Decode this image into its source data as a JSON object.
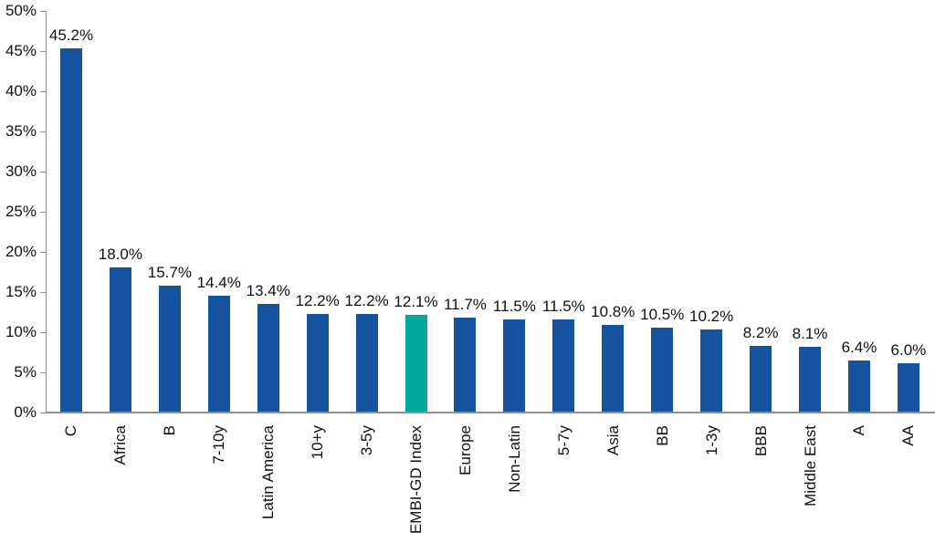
{
  "chart_data": {
    "type": "bar",
    "title": "",
    "xlabel": "",
    "ylabel": "",
    "ylim": [
      0,
      50
    ],
    "ytick_step": 5,
    "ytick_labels": [
      "0%",
      "5%",
      "10%",
      "15%",
      "20%",
      "25%",
      "30%",
      "35%",
      "40%",
      "45%",
      "50%"
    ],
    "grid": false,
    "legend_position": "none",
    "categories": [
      "C",
      "Africa",
      "B",
      "7-10y",
      "Latin America",
      "10+y",
      "3-5y",
      "EMBI-GD Index",
      "Europe",
      "Non-Latin",
      "5-7y",
      "Asia",
      "BB",
      "1-3y",
      "BBB",
      "Middle East",
      "A",
      "AA"
    ],
    "values": [
      45.2,
      18.0,
      15.7,
      14.4,
      13.4,
      12.2,
      12.2,
      12.1,
      11.7,
      11.5,
      11.5,
      10.8,
      10.5,
      10.2,
      8.2,
      8.1,
      6.4,
      6.0
    ],
    "value_labels": [
      "45.2%",
      "18.0%",
      "15.7%",
      "14.4%",
      "13.4%",
      "12.2%",
      "12.2%",
      "12.1%",
      "11.7%",
      "11.5%",
      "11.5%",
      "10.8%",
      "10.5%",
      "10.2%",
      "8.2%",
      "8.1%",
      "6.4%",
      "6.0%"
    ],
    "highlight_category": "EMBI-GD Index",
    "highlight_index": 7,
    "colors": {
      "bar": "#15539f",
      "highlight": "#00a89e",
      "axis": "#8f8f8f",
      "text": "#111111",
      "background": "#ffffff"
    }
  }
}
